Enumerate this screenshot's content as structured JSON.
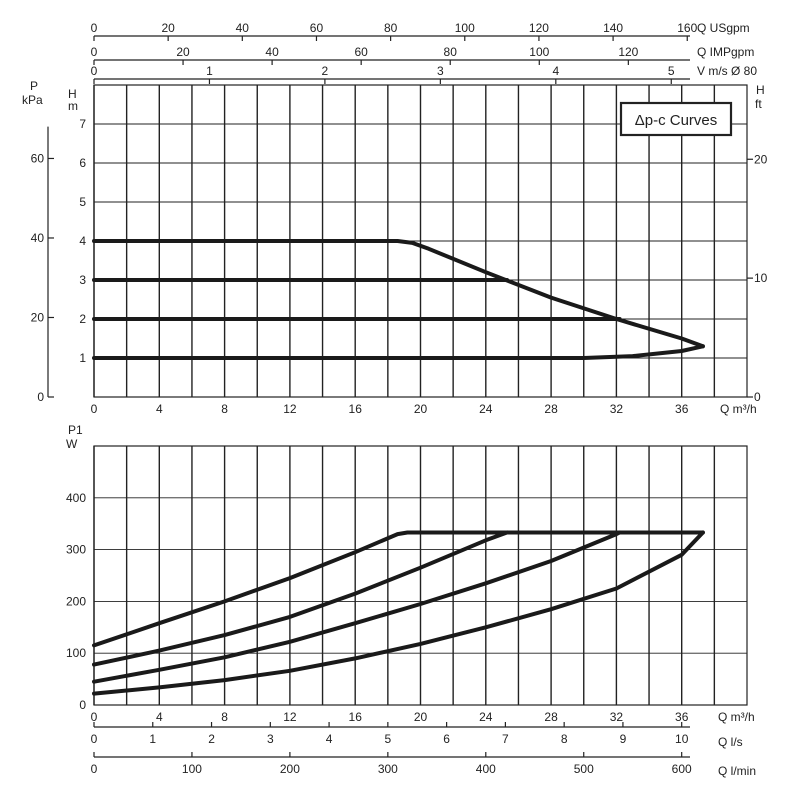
{
  "chart_data": [
    {
      "type": "line",
      "title": "Δp-c Curves",
      "xlabel": "Q m³/h",
      "ylabel": "H m",
      "x_ticks": [
        0,
        4,
        8,
        12,
        16,
        20,
        24,
        28,
        32,
        36
      ],
      "xlim": [
        0,
        40
      ],
      "y_ticks": [
        1,
        2,
        3,
        4,
        5,
        6,
        7
      ],
      "ylim": [
        0,
        8
      ],
      "grid": true,
      "legend": "top-right",
      "secondary_axes": {
        "left_pressure": {
          "label": "P kPa",
          "unit_top": "P",
          "unit_bottom": "kPa",
          "ticks": [
            0,
            20,
            40,
            60
          ],
          "per_m": 9.81
        },
        "right_head_ft": {
          "label": "H ft",
          "unit_top": "H",
          "unit_bottom": "ft",
          "ticks": [
            0,
            10,
            20
          ],
          "per_m": 3.28084
        },
        "top_usgpm": {
          "label": "Q USgpm",
          "ticks": [
            0,
            20,
            40,
            60,
            80,
            100,
            120,
            140,
            160
          ],
          "per_m3h": 4.4029
        },
        "top_impgpm": {
          "label": "Q IMPgpm",
          "ticks": [
            0,
            20,
            40,
            60,
            80,
            100,
            120
          ],
          "per_m3h": 3.6662
        },
        "top_velocity": {
          "label": "V m/s Ø 80",
          "ticks": [
            0,
            1,
            2,
            3,
            4,
            5
          ],
          "per_m3h": 0.1414
        }
      },
      "series": [
        {
          "x": [
            0,
            18.6,
            19.5,
            20.5,
            24,
            28,
            32,
            36,
            37.3
          ],
          "y": [
            4,
            4,
            3.95,
            3.8,
            3.2,
            2.55,
            2.0,
            1.5,
            1.3
          ]
        },
        {
          "x": [
            0,
            25.3
          ],
          "y": [
            3,
            3
          ]
        },
        {
          "x": [
            0,
            32.2
          ],
          "y": [
            2,
            2
          ]
        },
        {
          "x": [
            0,
            30,
            33,
            36,
            37.3
          ],
          "y": [
            1,
            1,
            1.05,
            1.18,
            1.3
          ]
        }
      ]
    },
    {
      "type": "line",
      "xlabel": "Q m³/h",
      "ylabel": "P1 W",
      "x_ticks": [
        0,
        4,
        8,
        12,
        16,
        20,
        24,
        28,
        32,
        36
      ],
      "xlim": [
        0,
        40
      ],
      "y_ticks": [
        0,
        100,
        200,
        300,
        400
      ],
      "ylim": [
        0,
        500
      ],
      "grid": true,
      "secondary_axes": {
        "bottom_ls": {
          "label": "Q l/s",
          "ticks": [
            0,
            1,
            2,
            3,
            4,
            5,
            6,
            7,
            8,
            9,
            10
          ],
          "per_m3h": 0.27778
        },
        "bottom_lmin": {
          "label": "Q l/min",
          "ticks": [
            0,
            100,
            200,
            300,
            400,
            500,
            600
          ],
          "per_m3h": 16.667
        }
      },
      "series": [
        {
          "x": [
            0,
            4,
            8,
            12,
            16,
            18.6,
            19.2,
            37.3
          ],
          "y": [
            115,
            158,
            200,
            245,
            295,
            330,
            333,
            333
          ]
        },
        {
          "x": [
            0,
            4,
            8,
            12,
            16,
            20,
            24,
            25.3
          ],
          "y": [
            78,
            105,
            135,
            170,
            215,
            265,
            318,
            333
          ]
        },
        {
          "x": [
            0,
            4,
            8,
            12,
            16,
            20,
            24,
            28,
            32,
            32.2
          ],
          "y": [
            45,
            68,
            92,
            122,
            158,
            195,
            235,
            278,
            330,
            333
          ]
        },
        {
          "x": [
            0,
            4,
            8,
            12,
            16,
            20,
            24,
            28,
            32,
            36,
            37.3
          ],
          "y": [
            22,
            34,
            48,
            66,
            90,
            118,
            150,
            185,
            225,
            290,
            333
          ]
        }
      ]
    }
  ]
}
